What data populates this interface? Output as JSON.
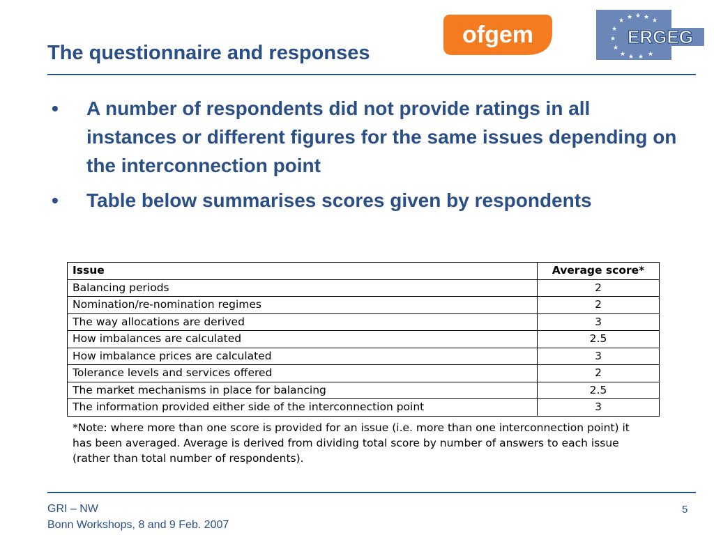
{
  "header": {
    "title": "The questionnaire and responses",
    "ofgem_logo_text": "ofgem",
    "ergeg_logo_text": "ERGEG",
    "colors": {
      "title": "#2a4f86",
      "ofgem_orange": "#f47b20",
      "ergeg_bg": "#6a87b8"
    }
  },
  "bullets": [
    {
      "marker": "•",
      "text": "A  number of respondents did not provide ratings in all instances or different figures for the same issues depending on the interconnection point"
    },
    {
      "marker": "•",
      "text": "Table below summarises scores given by respondents"
    }
  ],
  "table": {
    "headers": {
      "issue": "Issue",
      "score": "Average score*"
    },
    "rows": [
      {
        "issue": "Balancing periods",
        "score": "2"
      },
      {
        "issue": "Nomination/re-nomination regimes",
        "score": "2"
      },
      {
        "issue": "The way allocations are derived",
        "score": "3"
      },
      {
        "issue": "How imbalances are calculated",
        "score": "2.5"
      },
      {
        "issue": "How imbalance prices are calculated",
        "score": "3"
      },
      {
        "issue": "Tolerance levels and services offered",
        "score": "2"
      },
      {
        "issue": "The market mechanisms in place for balancing",
        "score": "2.5"
      },
      {
        "issue": "The information provided either side of the interconnection point",
        "score": "3"
      }
    ],
    "note": "*Note: where more than one score is provided for an issue (i.e. more than one interconnection point) it has been averaged.  Average is derived from dividing total score by number of answers to each issue (rather than total number of respondents)."
  },
  "footer": {
    "line1": "GRI – NW",
    "line2": "Bonn Workshops, 8 and 9 Feb. 2007",
    "page_number": "5"
  }
}
